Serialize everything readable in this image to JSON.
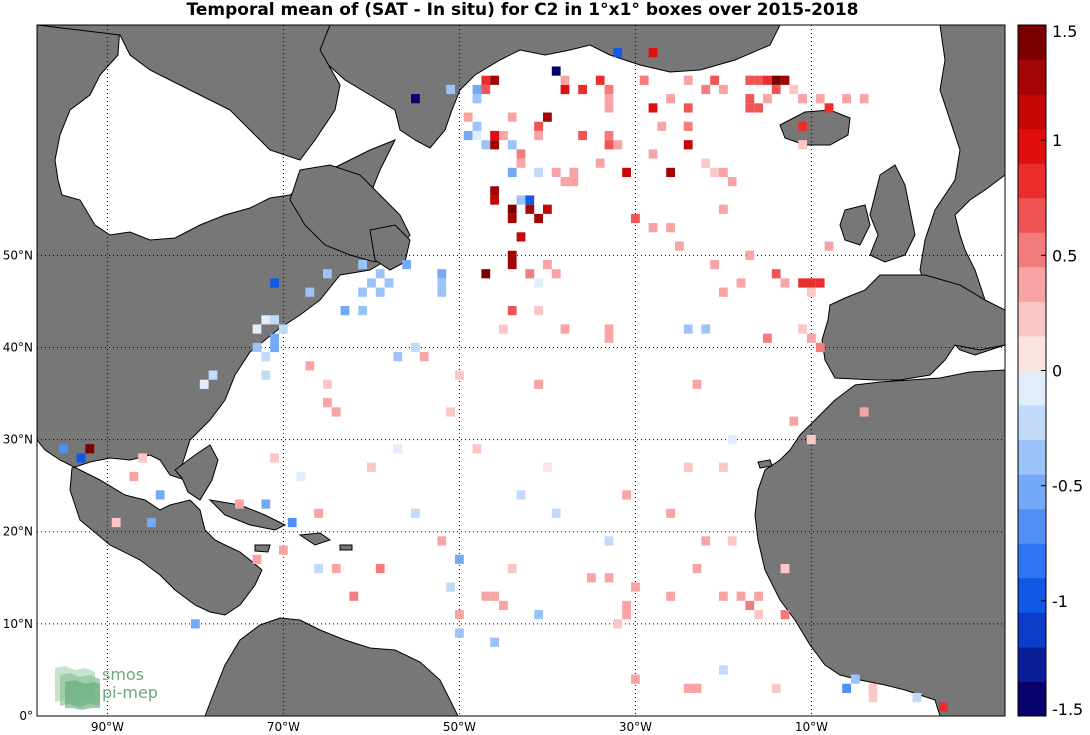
{
  "title": "Temporal mean of (SAT - In situ) for C2 in 1°x1° boxes over 2015-2018",
  "map": {
    "lon_min": -98,
    "lon_max": 12,
    "lat_min": 0,
    "lat_max": 75,
    "land_color": "#777777",
    "ocean_color": "#ffffff",
    "grid_lons": [
      -90,
      -70,
      -50,
      -30,
      -10
    ],
    "grid_lats": [
      0,
      10,
      20,
      30,
      40,
      50
    ],
    "lon_labels": [
      "90°W",
      "70°W",
      "50°W",
      "30°W",
      "10°W"
    ],
    "lat_labels": [
      "0°",
      "10°N",
      "20°N",
      "30°N",
      "40°N",
      "50°N"
    ]
  },
  "colorbar": {
    "min": -1.5,
    "max": 1.5,
    "tick_values": [
      1.5,
      1,
      0.5,
      0,
      -0.5,
      -1,
      -1.5
    ],
    "tick_labels": [
      "1.5",
      "1",
      "0.5",
      "0",
      "-0.5",
      "-1",
      "-1.5"
    ],
    "colors": [
      "#08006b",
      "#0b1e9a",
      "#0d3ccb",
      "#1258e6",
      "#2f74f2",
      "#4f90f5",
      "#74a9f7",
      "#9cc3f9",
      "#c1daf9",
      "#e2edfb",
      "#fbe3e3",
      "#fbc6c6",
      "#f8a4a4",
      "#f47c7c",
      "#f05454",
      "#ec2d2d",
      "#e00e0e",
      "#c50606",
      "#a30404",
      "#7a0000"
    ]
  },
  "logo": {
    "line1": "smos",
    "line2": "pi-mep"
  },
  "chart_data": {
    "type": "heatmap",
    "title": "Temporal mean of (SAT - In situ) for C2 in 1°x1° boxes over 2015-2018",
    "value_range": [
      -1.5,
      1.5
    ],
    "cells": [
      {
        "lon": -32,
        "lat": 72,
        "v": -0.9
      },
      {
        "lon": -28,
        "lat": 72,
        "v": 1.0
      },
      {
        "lon": -39,
        "lat": 70,
        "v": -1.5
      },
      {
        "lon": -38,
        "lat": 69,
        "v": 0.3
      },
      {
        "lon": -34,
        "lat": 69,
        "v": 0.9
      },
      {
        "lon": -29,
        "lat": 69,
        "v": 0.5
      },
      {
        "lon": -24,
        "lat": 69,
        "v": 0.4
      },
      {
        "lon": -21,
        "lat": 69,
        "v": 0.7
      },
      {
        "lon": -17,
        "lat": 69,
        "v": 0.7
      },
      {
        "lon": -16,
        "lat": 69,
        "v": 0.7
      },
      {
        "lon": -15,
        "lat": 69,
        "v": 0.9
      },
      {
        "lon": -14,
        "lat": 69,
        "v": 1.4
      },
      {
        "lon": -13,
        "lat": 69,
        "v": 1.3
      },
      {
        "lon": -47,
        "lat": 69,
        "v": 0.9
      },
      {
        "lon": -46,
        "lat": 69,
        "v": 1.3
      },
      {
        "lon": -51,
        "lat": 68,
        "v": -0.4
      },
      {
        "lon": -48,
        "lat": 68,
        "v": -0.6
      },
      {
        "lon": -47,
        "lat": 68,
        "v": 0.7
      },
      {
        "lon": -38,
        "lat": 68,
        "v": 1.0
      },
      {
        "lon": -36,
        "lat": 68,
        "v": 0.9
      },
      {
        "lon": -33,
        "lat": 68,
        "v": 0.5
      },
      {
        "lon": -22,
        "lat": 68,
        "v": 0.5
      },
      {
        "lon": -20,
        "lat": 68,
        "v": 0.4
      },
      {
        "lon": -14,
        "lat": 68,
        "v": 0.6
      },
      {
        "lon": -12,
        "lat": 68,
        "v": 0.2
      },
      {
        "lon": -55,
        "lat": 67,
        "v": -1.5
      },
      {
        "lon": -48,
        "lat": 67,
        "v": -0.4
      },
      {
        "lon": -33,
        "lat": 67,
        "v": 0.4
      },
      {
        "lon": -17,
        "lat": 67,
        "v": 0.7
      },
      {
        "lon": -15,
        "lat": 67,
        "v": 0.3
      },
      {
        "lon": -26,
        "lat": 67,
        "v": 0.4
      },
      {
        "lon": -11,
        "lat": 67,
        "v": 0.4
      },
      {
        "lon": -9,
        "lat": 67,
        "v": 0.4
      },
      {
        "lon": -6,
        "lat": 67,
        "v": 0.4
      },
      {
        "lon": -4,
        "lat": 67,
        "v": 0.3
      },
      {
        "lon": -33,
        "lat": 66,
        "v": 0.4
      },
      {
        "lon": -28,
        "lat": 66,
        "v": 1.0
      },
      {
        "lon": -24,
        "lat": 66,
        "v": 0.7
      },
      {
        "lon": -17,
        "lat": 66,
        "v": 0.7
      },
      {
        "lon": -16,
        "lat": 66,
        "v": 0.6
      },
      {
        "lon": -8,
        "lat": 66,
        "v": 0.9
      },
      {
        "lon": -49,
        "lat": 65,
        "v": 0.3
      },
      {
        "lon": -44,
        "lat": 65,
        "v": 0.4
      },
      {
        "lon": -40,
        "lat": 65,
        "v": 1.2
      },
      {
        "lon": -48,
        "lat": 64,
        "v": -0.4
      },
      {
        "lon": -41,
        "lat": 64,
        "v": 0.6
      },
      {
        "lon": -27,
        "lat": 64,
        "v": 0.4
      },
      {
        "lon": -24,
        "lat": 64,
        "v": 0.5
      },
      {
        "lon": -11,
        "lat": 64,
        "v": 0.9
      },
      {
        "lon": -49,
        "lat": 63,
        "v": -0.5
      },
      {
        "lon": -48,
        "lat": 63,
        "v": -0.1
      },
      {
        "lon": -46,
        "lat": 63,
        "v": 1.0
      },
      {
        "lon": -45,
        "lat": 63,
        "v": 0.4
      },
      {
        "lon": -41,
        "lat": 63,
        "v": 0.4
      },
      {
        "lon": -36,
        "lat": 63,
        "v": 0.6
      },
      {
        "lon": -33,
        "lat": 63,
        "v": 0.5
      },
      {
        "lon": -47,
        "lat": 62,
        "v": -0.3
      },
      {
        "lon": -46,
        "lat": 62,
        "v": 1.2
      },
      {
        "lon": -44,
        "lat": 62,
        "v": -0.4
      },
      {
        "lon": -33,
        "lat": 62,
        "v": 0.6
      },
      {
        "lon": -32,
        "lat": 62,
        "v": 0.4
      },
      {
        "lon": -24,
        "lat": 62,
        "v": 1.1
      },
      {
        "lon": -11,
        "lat": 62,
        "v": 0.2
      },
      {
        "lon": -43,
        "lat": 61,
        "v": 0.5
      },
      {
        "lon": -28,
        "lat": 61,
        "v": 0.3
      },
      {
        "lon": -43,
        "lat": 60,
        "v": 0.3
      },
      {
        "lon": -34,
        "lat": 60,
        "v": 0.4
      },
      {
        "lon": -22,
        "lat": 60,
        "v": 0.2
      },
      {
        "lon": -44,
        "lat": 59,
        "v": -0.6
      },
      {
        "lon": -41,
        "lat": 59,
        "v": -0.2
      },
      {
        "lon": -31,
        "lat": 59,
        "v": 1.1
      },
      {
        "lon": -26,
        "lat": 59,
        "v": 1.2
      },
      {
        "lon": -21,
        "lat": 59,
        "v": 0.2
      },
      {
        "lon": -20,
        "lat": 59,
        "v": 0.3
      },
      {
        "lon": -39,
        "lat": 59,
        "v": 0.3
      },
      {
        "lon": -37,
        "lat": 59,
        "v": 0.4
      },
      {
        "lon": -38,
        "lat": 58,
        "v": 0.3
      },
      {
        "lon": -19,
        "lat": 58,
        "v": 0.3
      },
      {
        "lon": -37,
        "lat": 58,
        "v": 0.3
      },
      {
        "lon": -46,
        "lat": 57,
        "v": 1.2
      },
      {
        "lon": -43,
        "lat": 56,
        "v": -0.4
      },
      {
        "lon": -42,
        "lat": 56,
        "v": -1.0
      },
      {
        "lon": -46,
        "lat": 56,
        "v": 1.1
      },
      {
        "lon": -40,
        "lat": 55,
        "v": 1.1
      },
      {
        "lon": -44,
        "lat": 55,
        "v": 1.4
      },
      {
        "lon": -42,
        "lat": 55,
        "v": 1.2
      },
      {
        "lon": -20,
        "lat": 55,
        "v": 0.4
      },
      {
        "lon": -44,
        "lat": 54,
        "v": 1.3
      },
      {
        "lon": -41,
        "lat": 54,
        "v": 1.3
      },
      {
        "lon": -30,
        "lat": 54,
        "v": 0.6
      },
      {
        "lon": -28,
        "lat": 53,
        "v": 0.4
      },
      {
        "lon": -26,
        "lat": 53,
        "v": 0.4
      },
      {
        "lon": -43,
        "lat": 52,
        "v": 1.1
      },
      {
        "lon": -25,
        "lat": 51,
        "v": 0.4
      },
      {
        "lon": -44,
        "lat": 50,
        "v": 1.3
      },
      {
        "lon": -44,
        "lat": 49,
        "v": 1.3
      },
      {
        "lon": -17,
        "lat": 50,
        "v": 0.4
      },
      {
        "lon": -21,
        "lat": 49,
        "v": 0.4
      },
      {
        "lon": -8,
        "lat": 51,
        "v": 0.4
      },
      {
        "lon": -47,
        "lat": 48,
        "v": 1.4
      },
      {
        "lon": -42,
        "lat": 48,
        "v": 0.5
      },
      {
        "lon": -39,
        "lat": 48,
        "v": 0.4
      },
      {
        "lon": -40,
        "lat": 49,
        "v": 0.3
      },
      {
        "lon": -61,
        "lat": 49,
        "v": -0.4
      },
      {
        "lon": -56,
        "lat": 49,
        "v": -0.5
      },
      {
        "lon": -65,
        "lat": 48,
        "v": -0.3
      },
      {
        "lon": -59,
        "lat": 48,
        "v": -0.3
      },
      {
        "lon": -52,
        "lat": 48,
        "v": -0.6
      },
      {
        "lon": -60,
        "lat": 47,
        "v": -0.3
      },
      {
        "lon": -58,
        "lat": 47,
        "v": -0.3
      },
      {
        "lon": -52,
        "lat": 47,
        "v": -0.3
      },
      {
        "lon": -14,
        "lat": 48,
        "v": 0.6
      },
      {
        "lon": -13,
        "lat": 47,
        "v": 0.4
      },
      {
        "lon": -11,
        "lat": 47,
        "v": 0.8
      },
      {
        "lon": -10,
        "lat": 47,
        "v": 0.9
      },
      {
        "lon": -9,
        "lat": 47,
        "v": 0.9
      },
      {
        "lon": -10,
        "lat": 46,
        "v": 0.2
      },
      {
        "lon": -71,
        "lat": 47,
        "v": -0.9
      },
      {
        "lon": -67,
        "lat": 46,
        "v": -0.3
      },
      {
        "lon": -61,
        "lat": 46,
        "v": -0.3
      },
      {
        "lon": -59,
        "lat": 46,
        "v": -0.3
      },
      {
        "lon": -52,
        "lat": 46,
        "v": -0.3
      },
      {
        "lon": -41,
        "lat": 47,
        "v": -0.1
      },
      {
        "lon": -18,
        "lat": 47,
        "v": 0.4
      },
      {
        "lon": -20,
        "lat": 46,
        "v": 0.4
      },
      {
        "lon": -44,
        "lat": 44,
        "v": 0.6
      },
      {
        "lon": -41,
        "lat": 44,
        "v": 0.2
      },
      {
        "lon": -63,
        "lat": 44,
        "v": -0.5
      },
      {
        "lon": -61,
        "lat": 44,
        "v": -0.3
      },
      {
        "lon": -71,
        "lat": 43,
        "v": -0.2
      },
      {
        "lon": -70,
        "lat": 42,
        "v": -0.2
      },
      {
        "lon": -72,
        "lat": 43,
        "v": -0.1
      },
      {
        "lon": -71,
        "lat": 41,
        "v": -0.6
      },
      {
        "lon": -73,
        "lat": 40,
        "v": -0.3
      },
      {
        "lon": -71,
        "lat": 40,
        "v": -0.6
      },
      {
        "lon": -72,
        "lat": 39,
        "v": -0.2
      },
      {
        "lon": -73,
        "lat": 42,
        "v": -0.1
      },
      {
        "lon": -55,
        "lat": 40,
        "v": -0.2
      },
      {
        "lon": -57,
        "lat": 39,
        "v": -0.3
      },
      {
        "lon": -54,
        "lat": 39,
        "v": 0.4
      },
      {
        "lon": -45,
        "lat": 42,
        "v": 0.2
      },
      {
        "lon": -38,
        "lat": 42,
        "v": 0.3
      },
      {
        "lon": -33,
        "lat": 41,
        "v": 0.3
      },
      {
        "lon": -33,
        "lat": 42,
        "v": 0.3
      },
      {
        "lon": -24,
        "lat": 42,
        "v": -0.3
      },
      {
        "lon": -22,
        "lat": 42,
        "v": -0.3
      },
      {
        "lon": -11,
        "lat": 42,
        "v": 0.2
      },
      {
        "lon": -10,
        "lat": 41,
        "v": 0.4
      },
      {
        "lon": -15,
        "lat": 41,
        "v": 0.5
      },
      {
        "lon": -9,
        "lat": 40,
        "v": 0.5
      },
      {
        "lon": -67,
        "lat": 38,
        "v": 0.3
      },
      {
        "lon": -65,
        "lat": 36,
        "v": 0.2
      },
      {
        "lon": -79,
        "lat": 36,
        "v": -0.1
      },
      {
        "lon": -78,
        "lat": 37,
        "v": -0.2
      },
      {
        "lon": -72,
        "lat": 37,
        "v": -0.2
      },
      {
        "lon": -65,
        "lat": 34,
        "v": 0.3
      },
      {
        "lon": -50,
        "lat": 37,
        "v": 0.2
      },
      {
        "lon": -41,
        "lat": 36,
        "v": 0.3
      },
      {
        "lon": -23,
        "lat": 36,
        "v": 0.3
      },
      {
        "lon": -64,
        "lat": 33,
        "v": 0.3
      },
      {
        "lon": -51,
        "lat": 33,
        "v": 0.2
      },
      {
        "lon": -12,
        "lat": 32,
        "v": 0.3
      },
      {
        "lon": -4,
        "lat": 33,
        "v": 0.3
      },
      {
        "lon": -57,
        "lat": 29,
        "v": -0.1
      },
      {
        "lon": -48,
        "lat": 29,
        "v": 0.2
      },
      {
        "lon": -19,
        "lat": 30,
        "v": -0.1
      },
      {
        "lon": -10,
        "lat": 30,
        "v": 0.2
      },
      {
        "lon": -95,
        "lat": 29,
        "v": -0.7
      },
      {
        "lon": -92,
        "lat": 29,
        "v": 1.5
      },
      {
        "lon": -93,
        "lat": 28,
        "v": -0.9
      },
      {
        "lon": -86,
        "lat": 28,
        "v": 0.2
      },
      {
        "lon": -71,
        "lat": 28,
        "v": 0.2
      },
      {
        "lon": -60,
        "lat": 27,
        "v": 0.2
      },
      {
        "lon": -68,
        "lat": 26,
        "v": -0.1
      },
      {
        "lon": -40,
        "lat": 27,
        "v": 0.1
      },
      {
        "lon": -24,
        "lat": 27,
        "v": 0.2
      },
      {
        "lon": -20,
        "lat": 27,
        "v": 0.2
      },
      {
        "lon": -87,
        "lat": 26,
        "v": 0.3
      },
      {
        "lon": -84,
        "lat": 24,
        "v": -0.5
      },
      {
        "lon": -75,
        "lat": 23,
        "v": 0.3
      },
      {
        "lon": -72,
        "lat": 23,
        "v": -0.5
      },
      {
        "lon": -66,
        "lat": 22,
        "v": 0.3
      },
      {
        "lon": -55,
        "lat": 22,
        "v": -0.2
      },
      {
        "lon": -43,
        "lat": 24,
        "v": -0.2
      },
      {
        "lon": -39,
        "lat": 22,
        "v": -0.2
      },
      {
        "lon": -31,
        "lat": 24,
        "v": 0.3
      },
      {
        "lon": -26,
        "lat": 22,
        "v": 0.3
      },
      {
        "lon": -85,
        "lat": 21,
        "v": -0.5
      },
      {
        "lon": -89,
        "lat": 21,
        "v": 0.2
      },
      {
        "lon": -69,
        "lat": 21,
        "v": -0.7
      },
      {
        "lon": -52,
        "lat": 19,
        "v": 0.3
      },
      {
        "lon": -33,
        "lat": 19,
        "v": -0.2
      },
      {
        "lon": -22,
        "lat": 19,
        "v": 0.3
      },
      {
        "lon": -19,
        "lat": 19,
        "v": 0.2
      },
      {
        "lon": -70,
        "lat": 18,
        "v": 0.4
      },
      {
        "lon": -73,
        "lat": 17,
        "v": 0.3
      },
      {
        "lon": -66,
        "lat": 16,
        "v": -0.2
      },
      {
        "lon": -64,
        "lat": 16,
        "v": 0.3
      },
      {
        "lon": -59,
        "lat": 16,
        "v": 0.5
      },
      {
        "lon": -50,
        "lat": 17,
        "v": -0.5
      },
      {
        "lon": -44,
        "lat": 16,
        "v": 0.2
      },
      {
        "lon": -35,
        "lat": 15,
        "v": 0.3
      },
      {
        "lon": -33,
        "lat": 15,
        "v": 0.3
      },
      {
        "lon": -23,
        "lat": 16,
        "v": 0.3
      },
      {
        "lon": -13,
        "lat": 16,
        "v": 0.2
      },
      {
        "lon": -51,
        "lat": 14,
        "v": -0.2
      },
      {
        "lon": -62,
        "lat": 13,
        "v": 0.5
      },
      {
        "lon": -46,
        "lat": 13,
        "v": 0.3
      },
      {
        "lon": -47,
        "lat": 13,
        "v": 0.3
      },
      {
        "lon": -30,
        "lat": 14,
        "v": 0.4
      },
      {
        "lon": -26,
        "lat": 13,
        "v": 0.3
      },
      {
        "lon": -20,
        "lat": 13,
        "v": 0.3
      },
      {
        "lon": -16,
        "lat": 13,
        "v": 0.4
      },
      {
        "lon": -17,
        "lat": 12,
        "v": 0.5
      },
      {
        "lon": -18,
        "lat": 13,
        "v": 0.4
      },
      {
        "lon": -31,
        "lat": 12,
        "v": 0.3
      },
      {
        "lon": -45,
        "lat": 12,
        "v": 0.3
      },
      {
        "lon": -50,
        "lat": 11,
        "v": 0.4
      },
      {
        "lon": -41,
        "lat": 11,
        "v": -0.3
      },
      {
        "lon": -32,
        "lat": 10,
        "v": 0.2
      },
      {
        "lon": -16,
        "lat": 11,
        "v": 0.2
      },
      {
        "lon": -13,
        "lat": 11,
        "v": 0.5
      },
      {
        "lon": -31,
        "lat": 11,
        "v": 0.3
      },
      {
        "lon": -80,
        "lat": 10,
        "v": -0.5
      },
      {
        "lon": -50,
        "lat": 9,
        "v": -0.4
      },
      {
        "lon": -46,
        "lat": 8,
        "v": -0.3
      },
      {
        "lon": -20,
        "lat": 5,
        "v": -0.2
      },
      {
        "lon": -30,
        "lat": 4,
        "v": 0.3
      },
      {
        "lon": -23,
        "lat": 3,
        "v": 0.3
      },
      {
        "lon": -24,
        "lat": 3,
        "v": 0.3
      },
      {
        "lon": -14,
        "lat": 3,
        "v": 0.2
      },
      {
        "lon": -5,
        "lat": 4,
        "v": -0.3
      },
      {
        "lon": -3,
        "lat": 3,
        "v": 0.2
      },
      {
        "lon": -6,
        "lat": 3,
        "v": -0.7
      },
      {
        "lon": -3,
        "lat": 2,
        "v": 0.2
      },
      {
        "lon": 2,
        "lat": 2,
        "v": -0.2
      },
      {
        "lon": 5,
        "lat": 1,
        "v": 0.8
      }
    ]
  }
}
